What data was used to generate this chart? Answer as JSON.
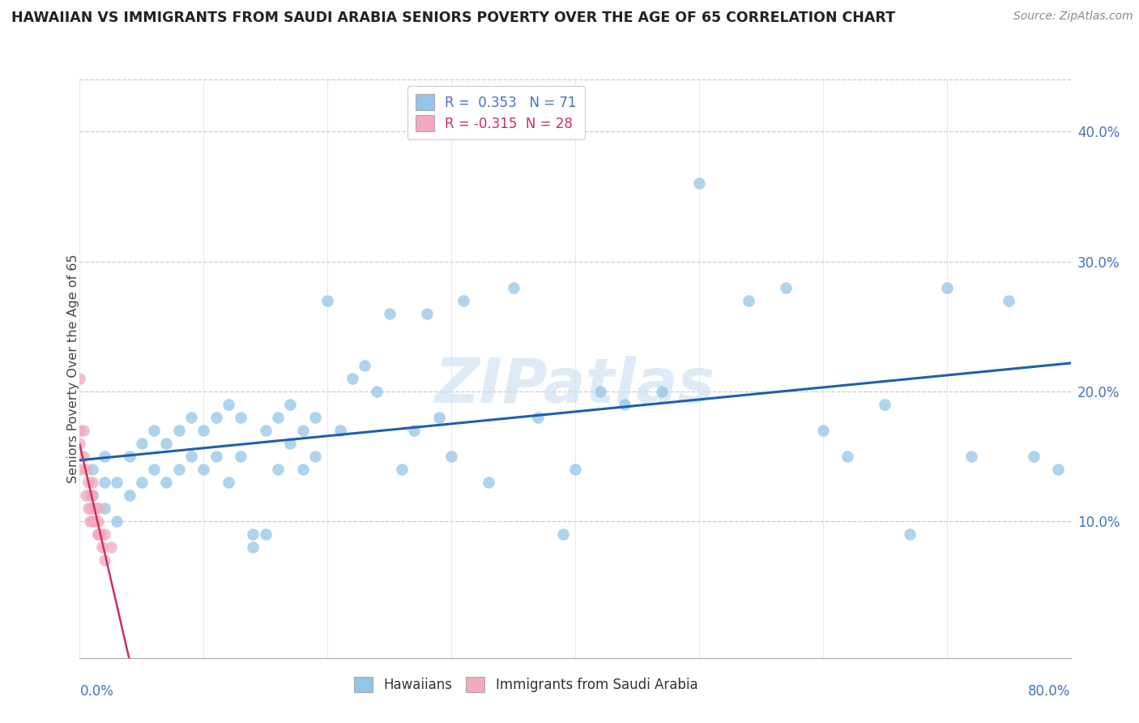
{
  "title": "HAWAIIAN VS IMMIGRANTS FROM SAUDI ARABIA SENIORS POVERTY OVER THE AGE OF 65 CORRELATION CHART",
  "source": "Source: ZipAtlas.com",
  "ylabel": "Seniors Poverty Over the Age of 65",
  "y_ticks": [
    0.0,
    0.1,
    0.2,
    0.3,
    0.4
  ],
  "y_tick_labels": [
    "",
    "10.0%",
    "20.0%",
    "30.0%",
    "40.0%"
  ],
  "x_range": [
    0.0,
    0.8
  ],
  "y_range": [
    -0.005,
    0.44
  ],
  "hawaiians_R": 0.353,
  "hawaiians_N": 71,
  "saudi_R": -0.315,
  "saudi_N": 28,
  "watermark": "ZIPatlas",
  "hawaiians_color": "#92C5E8",
  "hawaiians_line_color": "#1F5FAD",
  "saudi_color": "#F4A8BC",
  "saudi_line_color": "#C83060",
  "hawaiians_x": [
    0.01,
    0.01,
    0.02,
    0.02,
    0.02,
    0.03,
    0.03,
    0.04,
    0.04,
    0.05,
    0.05,
    0.06,
    0.06,
    0.07,
    0.07,
    0.08,
    0.08,
    0.09,
    0.09,
    0.1,
    0.1,
    0.11,
    0.11,
    0.12,
    0.12,
    0.13,
    0.13,
    0.14,
    0.14,
    0.15,
    0.15,
    0.16,
    0.16,
    0.17,
    0.17,
    0.18,
    0.18,
    0.19,
    0.19,
    0.2,
    0.21,
    0.22,
    0.23,
    0.24,
    0.25,
    0.26,
    0.27,
    0.28,
    0.29,
    0.3,
    0.31,
    0.33,
    0.35,
    0.37,
    0.39,
    0.4,
    0.42,
    0.44,
    0.47,
    0.5,
    0.54,
    0.57,
    0.6,
    0.62,
    0.65,
    0.67,
    0.7,
    0.72,
    0.75,
    0.77,
    0.79
  ],
  "hawaiians_y": [
    0.12,
    0.14,
    0.11,
    0.13,
    0.15,
    0.1,
    0.13,
    0.12,
    0.15,
    0.13,
    0.16,
    0.14,
    0.17,
    0.13,
    0.16,
    0.14,
    0.17,
    0.15,
    0.18,
    0.14,
    0.17,
    0.15,
    0.18,
    0.13,
    0.19,
    0.15,
    0.18,
    0.09,
    0.08,
    0.09,
    0.17,
    0.14,
    0.18,
    0.16,
    0.19,
    0.14,
    0.17,
    0.15,
    0.18,
    0.27,
    0.17,
    0.21,
    0.22,
    0.2,
    0.26,
    0.14,
    0.17,
    0.26,
    0.18,
    0.15,
    0.27,
    0.13,
    0.28,
    0.18,
    0.09,
    0.14,
    0.2,
    0.19,
    0.2,
    0.36,
    0.27,
    0.28,
    0.17,
    0.15,
    0.19,
    0.09,
    0.28,
    0.15,
    0.27,
    0.15,
    0.14
  ],
  "saudi_x": [
    0.0,
    0.0,
    0.0,
    0.0,
    0.003,
    0.003,
    0.005,
    0.005,
    0.007,
    0.007,
    0.008,
    0.008,
    0.009,
    0.01,
    0.01,
    0.01,
    0.01,
    0.012,
    0.013,
    0.015,
    0.015,
    0.015,
    0.015,
    0.017,
    0.018,
    0.02,
    0.02,
    0.025
  ],
  "saudi_y": [
    0.21,
    0.17,
    0.16,
    0.14,
    0.17,
    0.15,
    0.12,
    0.14,
    0.11,
    0.13,
    0.12,
    0.1,
    0.11,
    0.1,
    0.12,
    0.11,
    0.13,
    0.1,
    0.11,
    0.09,
    0.1,
    0.11,
    0.09,
    0.09,
    0.08,
    0.09,
    0.07,
    0.08
  ],
  "legend1_label": "R =  0.353   N = 71",
  "legend2_label": "R = -0.315  N = 28",
  "bottom_legend1": "Hawaiians",
  "bottom_legend2": "Immigrants from Saudi Arabia"
}
